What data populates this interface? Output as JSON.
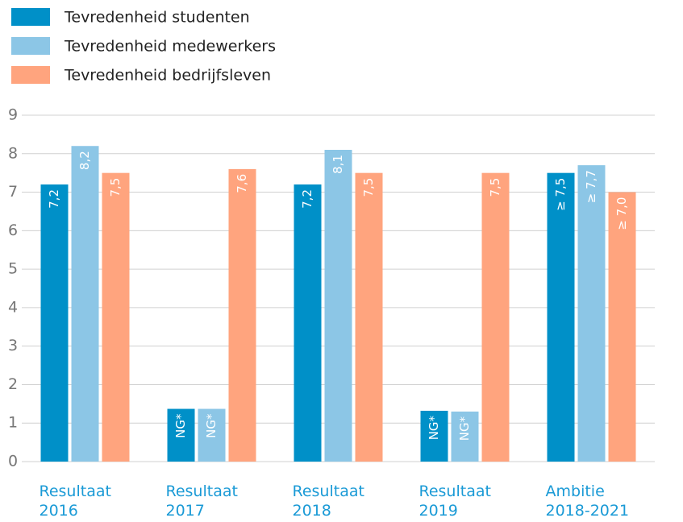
{
  "chart_data": {
    "type": "bar",
    "categories": [
      "Resultaat 2016",
      "Resultaat 2017",
      "Resultaat 2018",
      "Resultaat 2019",
      "Ambitie 2018-2021"
    ],
    "series": [
      {
        "name": "Tevredenheid studenten",
        "color": "#0090c8",
        "values": [
          7.2,
          1.37,
          7.2,
          1.32,
          7.5
        ],
        "value_labels": [
          "7,2",
          "NG*",
          "7,2",
          "NG*",
          "≥ 7,5"
        ]
      },
      {
        "name": "Tevredenheid medewerkers",
        "color": "#8cc6e6",
        "values": [
          8.2,
          1.37,
          8.1,
          1.3,
          7.7
        ],
        "value_labels": [
          "8,2",
          "NG*",
          "8,1",
          "NG*",
          "≥ 7,7"
        ]
      },
      {
        "name": "Tevredenheid bedrijfsleven",
        "color": "#ffa47e",
        "values": [
          7.5,
          7.6,
          7.5,
          7.5,
          7.0
        ],
        "value_labels": [
          "7,5",
          "7,6",
          "7,5",
          "7,5",
          "≥ 7,0"
        ]
      }
    ],
    "ylim": [
      0,
      9
    ],
    "yticks": [
      0,
      1,
      2,
      3,
      4,
      5,
      6,
      7,
      8,
      9
    ],
    "grid": true
  }
}
